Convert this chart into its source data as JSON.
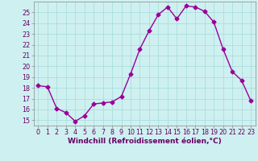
{
  "x": [
    0,
    1,
    2,
    3,
    4,
    5,
    6,
    7,
    8,
    9,
    10,
    11,
    12,
    13,
    14,
    15,
    16,
    17,
    18,
    19,
    20,
    21,
    22,
    23
  ],
  "y": [
    18.2,
    18.1,
    16.1,
    15.7,
    14.9,
    15.4,
    16.5,
    16.6,
    16.7,
    17.2,
    19.3,
    21.6,
    23.3,
    24.8,
    25.5,
    24.4,
    25.6,
    25.5,
    25.1,
    24.1,
    21.6,
    19.5,
    18.7,
    16.8
  ],
  "line_color": "#990099",
  "marker": "D",
  "markersize": 2.5,
  "linewidth": 1.0,
  "xlabel": "Windchill (Refroidissement éolien,°C)",
  "xlabel_color": "#660066",
  "xlabel_fontsize": 6.5,
  "xtick_labels": [
    "0",
    "1",
    "2",
    "3",
    "4",
    "5",
    "6",
    "7",
    "8",
    "9",
    "10",
    "11",
    "12",
    "13",
    "14",
    "15",
    "16",
    "17",
    "18",
    "19",
    "20",
    "21",
    "22",
    "23"
  ],
  "ytick_values": [
    15,
    16,
    17,
    18,
    19,
    20,
    21,
    22,
    23,
    24,
    25
  ],
  "ylim": [
    14.5,
    26.0
  ],
  "xlim": [
    -0.5,
    23.5
  ],
  "background_color": "#cff0f0",
  "grid_color": "#aadddd",
  "tick_fontsize": 5.8,
  "tick_labelcolor": "#660066",
  "spine_color": "#888888"
}
